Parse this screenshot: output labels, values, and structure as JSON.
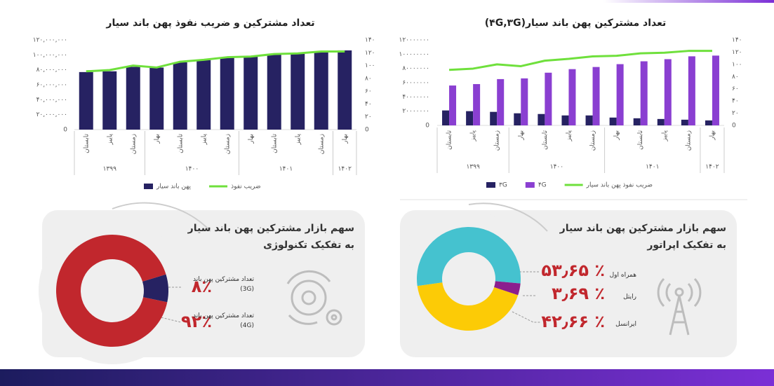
{
  "chart_data": [
    {
      "type": "bar",
      "title": "تعداد مشترکین پهن باند سیار(۴G,۳G)",
      "categories": [
        "تابستان",
        "پاییز",
        "زمستان",
        "بهار",
        "تابستان",
        "پاییز",
        "زمستان",
        "بهار",
        "تابستان",
        "پاییز",
        "زمستان",
        "بهار"
      ],
      "category_groups": [
        "۱۳۹۹",
        "۱۳۹۹",
        "۱۳۹۹",
        "۱۴۰۰",
        "۱۴۰۰",
        "۱۴۰۰",
        "۱۴۰۰",
        "۱۴۰۱",
        "۱۴۰۱",
        "۱۴۰۱",
        "۱۴۰۱",
        "۱۴۰۲"
      ],
      "series": [
        {
          "name": "۳G",
          "type": "bar",
          "color": "#262262",
          "values": [
            21000000,
            20000000,
            19000000,
            17000000,
            16000000,
            14000000,
            14000000,
            11000000,
            10000000,
            9000000,
            8000000,
            7000000
          ]
        },
        {
          "name": "۴G",
          "type": "bar",
          "color": "#8a3fd1",
          "values": [
            56000000,
            58000000,
            65000000,
            66000000,
            74000000,
            79000000,
            82000000,
            86000000,
            90000000,
            93000000,
            97000000,
            98000000
          ]
        },
        {
          "name": "ضریب نفوذ پهن باند سیار",
          "type": "line",
          "axis": "y2",
          "color": "#6fe03c",
          "values": [
            91,
            93,
            100,
            97,
            106,
            109,
            113,
            114,
            118,
            119,
            122,
            122
          ]
        }
      ],
      "ylim": [
        0,
        120000000
      ],
      "yticks": [
        0,
        {
          "value": 20000000,
          "label": "۲۰۰۰۰۰۰۰"
        },
        {
          "value": 40000000,
          "label": "۴۰۰۰۰۰۰۰"
        },
        {
          "value": 60000000,
          "label": "۶۰۰۰۰۰۰۰"
        },
        {
          "value": 80000000,
          "label": "۸۰۰۰۰۰۰۰"
        },
        {
          "value": 100000000,
          "label": "۱۰۰۰۰۰۰۰۰"
        },
        {
          "value": 120000000,
          "label": "۱۲۰۰۰۰۰۰۰"
        }
      ],
      "y2lim": [
        0,
        140
      ],
      "y2ticks": [
        0,
        {
          "value": 20,
          "label": "۲۰"
        },
        {
          "value": 40,
          "label": "۴۰"
        },
        {
          "value": 60,
          "label": "۶۰"
        },
        {
          "value": 80,
          "label": "۸۰"
        },
        {
          "value": 100,
          "label": "۱۰۰"
        },
        {
          "value": 120,
          "label": "۱۲۰"
        },
        {
          "value": 140,
          "label": "۱۴۰"
        }
      ],
      "grid": false
    },
    {
      "type": "bar",
      "title": "تعداد مشترکین و ضریب نفوذ پهن باند سیار",
      "categories": [
        "تابستان",
        "پاییز",
        "زمستان",
        "بهار",
        "تابستان",
        "پاییز",
        "زمستان",
        "بهار",
        "تابستان",
        "پاییز",
        "زمستان",
        "بهار"
      ],
      "category_groups": [
        "۱۳۹۹",
        "۱۳۹۹",
        "۱۳۹۹",
        "۱۴۰۰",
        "۱۴۰۰",
        "۱۴۰۰",
        "۱۴۰۰",
        "۱۴۰۱",
        "۱۴۰۱",
        "۱۴۰۱",
        "۱۴۰۱",
        "۱۴۰۲"
      ],
      "series": [
        {
          "name": "پهن باند سیار",
          "type": "bar",
          "color": "#262262",
          "values": [
            77000000,
            78000000,
            84000000,
            83000000,
            90000000,
            93000000,
            97000000,
            98000000,
            101000000,
            103000000,
            105000000,
            106000000
          ]
        },
        {
          "name": "ضریب نفوذ",
          "type": "line",
          "axis": "y2",
          "color": "#6fe03c",
          "values": [
            91,
            93,
            100,
            97,
            106,
            109,
            113,
            114,
            118,
            119,
            122,
            122
          ]
        }
      ],
      "ylim": [
        0,
        120000000
      ],
      "yticks": [
        0,
        {
          "value": 20000000,
          "label": "۲۰,۰۰۰,۰۰۰"
        },
        {
          "value": 40000000,
          "label": "۴۰,۰۰۰,۰۰۰"
        },
        {
          "value": 60000000,
          "label": "۶۰,۰۰۰,۰۰۰"
        },
        {
          "value": 80000000,
          "label": "۸۰,۰۰۰,۰۰۰"
        },
        {
          "value": 100000000,
          "label": "۱۰۰,۰۰۰,۰۰۰"
        },
        {
          "value": 120000000,
          "label": "۱۲۰,۰۰۰,۰۰۰"
        }
      ],
      "y2lim": [
        0,
        140
      ],
      "y2ticks": [
        0,
        {
          "value": 20,
          "label": "۲۰"
        },
        {
          "value": 40,
          "label": "۴۰"
        },
        {
          "value": 60,
          "label": "۶۰"
        },
        {
          "value": 80,
          "label": "۸۰"
        },
        {
          "value": 100,
          "label": "۱۰۰"
        },
        {
          "value": 120,
          "label": "۱۲۰"
        },
        {
          "value": 140,
          "label": "۱۴۰"
        }
      ],
      "grid": false
    },
    {
      "type": "donut",
      "title": "سهم بازار مشترکین پهن باند سیار به تفکیک تکنولوژی",
      "categories": [
        "تعداد مشترکین پهن باند (3G)",
        "تعداد مشترکین پهن باند (4G)"
      ],
      "values": [
        8,
        92
      ],
      "value_labels": [
        "۸٪",
        "۹۲٪"
      ],
      "colors": [
        "#262262",
        "#c1272d"
      ]
    },
    {
      "type": "donut",
      "title": "سهم بازار مشترکین پهن باند سیار به تفکیک اپراتور",
      "categories": [
        "همراه اول",
        "رایتل",
        "ایرانسل"
      ],
      "values": [
        53.65,
        3.69,
        42.66
      ],
      "value_labels": [
        "۵۳٫۶۵ ٪",
        "۳٫۶۹ ٪",
        "۴۲٫۶۶ ٪"
      ],
      "colors": [
        "#45c2cf",
        "#8b1e8e",
        "#fccb06"
      ]
    }
  ]
}
